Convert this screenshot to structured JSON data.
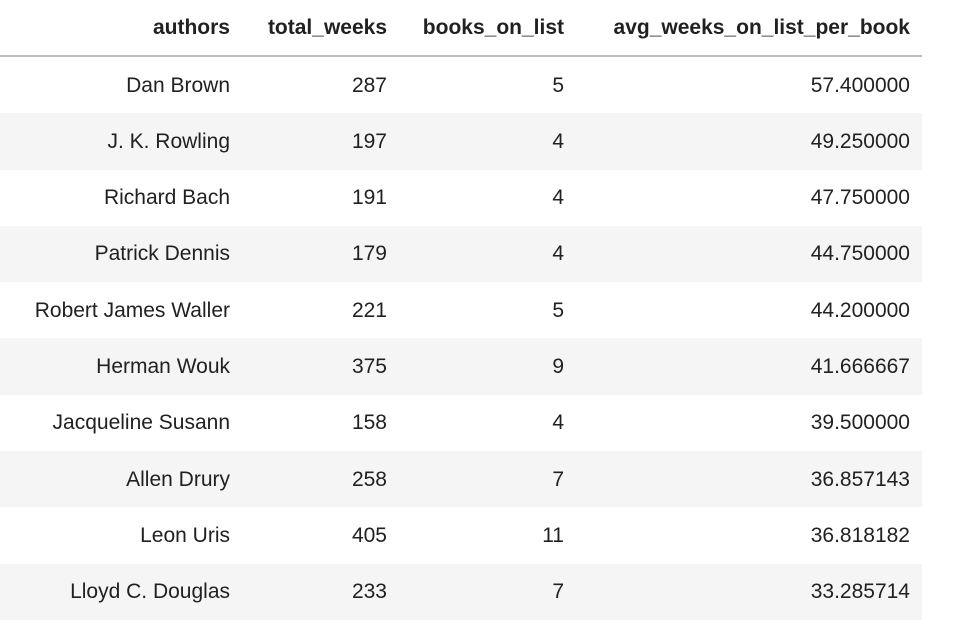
{
  "chart_data": {
    "type": "table",
    "columns": [
      "authors",
      "total_weeks",
      "books_on_list",
      "avg_weeks_on_list_per_book"
    ],
    "rows": [
      [
        "Dan Brown",
        "287",
        "5",
        "57.400000"
      ],
      [
        "J. K. Rowling",
        "197",
        "4",
        "49.250000"
      ],
      [
        "Richard Bach",
        "191",
        "4",
        "47.750000"
      ],
      [
        "Patrick Dennis",
        "179",
        "4",
        "44.750000"
      ],
      [
        "Robert James Waller",
        "221",
        "5",
        "44.200000"
      ],
      [
        "Herman Wouk",
        "375",
        "9",
        "41.666667"
      ],
      [
        "Jacqueline Susann",
        "158",
        "4",
        "39.500000"
      ],
      [
        "Allen Drury",
        "258",
        "7",
        "36.857143"
      ],
      [
        "Leon Uris",
        "405",
        "11",
        "36.818182"
      ],
      [
        "Lloyd C. Douglas",
        "233",
        "7",
        "33.285714"
      ]
    ],
    "layout": {
      "header_alignment": "right",
      "cell_alignment": "right",
      "striped": true,
      "grid": false
    }
  },
  "colors": {
    "background": "#ffffff",
    "row_stripe": "#f5f5f5",
    "header_border": "#bdbdbd",
    "text": "#212121"
  }
}
